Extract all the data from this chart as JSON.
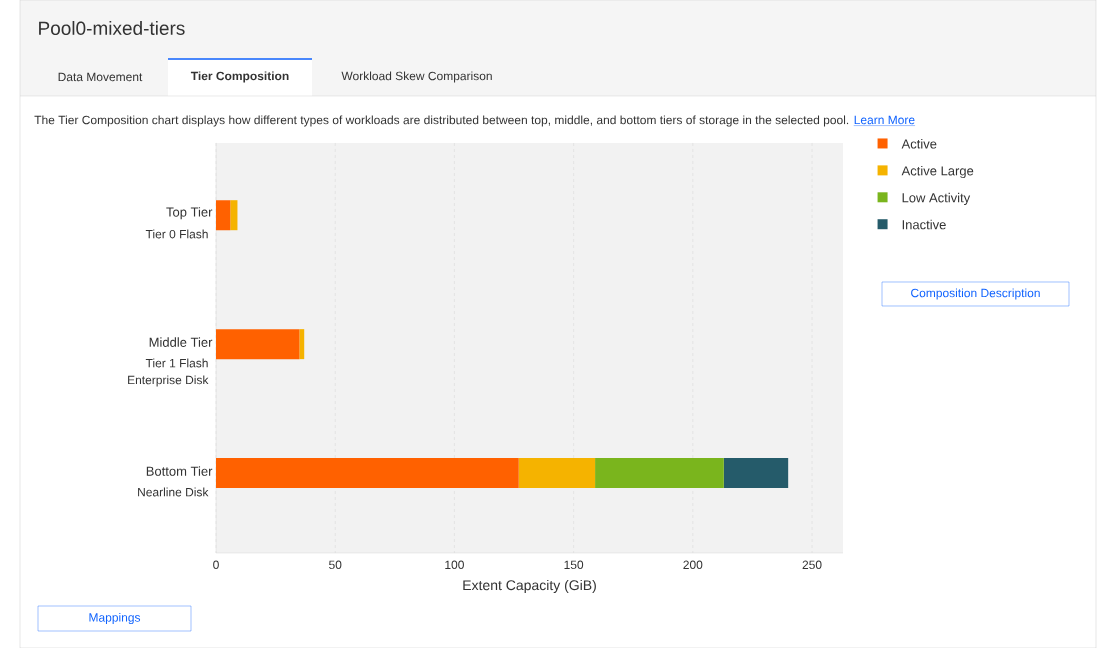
{
  "chart_data": {
    "type": "bar",
    "orientation": "horizontal",
    "stacked": true,
    "title": "Pool0-mixed-tiers",
    "subtitle": "The Tier Composition chart displays how different types of workloads are distributed between top, middle, and bottom tiers of storage in the selected pool.",
    "categories": [
      "Top Tier",
      "Middle Tier",
      "Bottom Tier"
    ],
    "series": [
      {
        "name": "Active",
        "color": "#ff6100",
        "values": [
          6,
          35,
          127
        ]
      },
      {
        "name": "Active Large",
        "color": "#f5b300",
        "values": [
          3,
          2,
          32
        ]
      },
      {
        "name": "Low Activity",
        "color": "#7ab51d",
        "values": [
          null,
          null,
          54
        ]
      },
      {
        "name": "Inactive",
        "color": "#255b6a",
        "values": [
          null,
          null,
          27
        ]
      }
    ],
    "xlabel": "Extent Capacity (GiB)",
    "xlim": [
      0,
      263
    ],
    "xticks": [
      0,
      50,
      100,
      150,
      200,
      250
    ],
    "grid": "x",
    "legend": "right",
    "annotations": [
      "Data Movement",
      "Tier Composition",
      "Workload Skew Comparison",
      "Tier 0 Flash",
      "Tier 1 Flash",
      "Enterprise Disk",
      "Nearline Disk",
      "Composition Description",
      "Mappings",
      "Learn More"
    ]
  }
}
